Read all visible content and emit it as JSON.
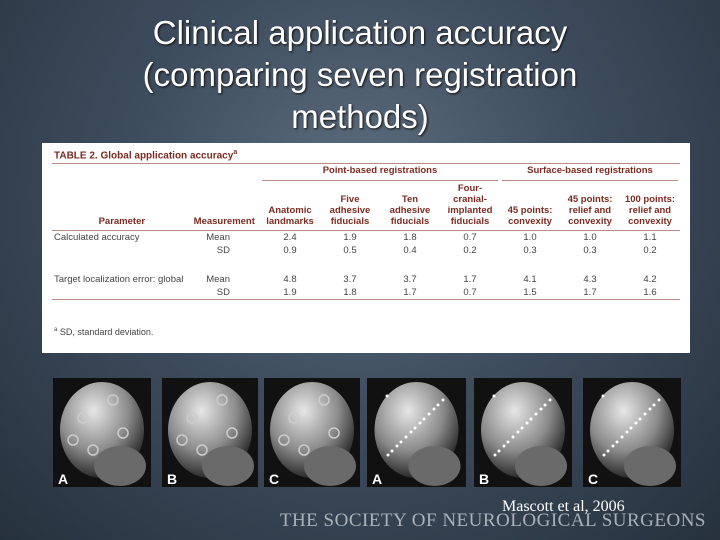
{
  "slide": {
    "title_lines": [
      "Clinical application accuracy",
      "(comparing seven registration",
      "methods)"
    ],
    "table": {
      "caption": "TABLE 2. Global application accuracy",
      "caption_mark": "a",
      "groups": [
        "Point-based registrations",
        "Surface-based registrations"
      ],
      "columns": [
        "Parameter",
        "Measurement",
        "Anatomic landmarks",
        "Five adhesive fiducials",
        "Ten adhesive fiducials",
        "Four-cranial-implanted fiducials",
        "45 points: convexity",
        "45 points: relief and convexity",
        "100 points: relief and convexity"
      ],
      "rows": [
        {
          "parameter": "Calculated accuracy",
          "lines": [
            {
              "measurement": "Mean",
              "values": [
                "2.4",
                "1.9",
                "1.8",
                "0.7",
                "1.0",
                "1.0",
                "1.1"
              ]
            },
            {
              "measurement": "SD",
              "values": [
                "0.9",
                "0.5",
                "0.4",
                "0.2",
                "0.3",
                "0.3",
                "0.2"
              ]
            }
          ]
        },
        {
          "parameter": "Target localization error: global",
          "lines": [
            {
              "measurement": "Mean",
              "values": [
                "4.8",
                "3.7",
                "3.7",
                "1.7",
                "4.1",
                "4.3",
                "4.2"
              ]
            },
            {
              "measurement": "SD",
              "values": [
                "1.9",
                "1.8",
                "1.7",
                "0.7",
                "1.5",
                "1.7",
                "1.6"
              ]
            }
          ]
        }
      ],
      "footnote_mark": "a",
      "footnote": "SD, standard deviation."
    },
    "image_labels": [
      "A",
      "B",
      "C",
      "A",
      "B",
      "C"
    ],
    "citation": "Mascott et al, 2006",
    "footer": "THE SOCIETY OF NEUROLOGICAL SURGEONS"
  }
}
